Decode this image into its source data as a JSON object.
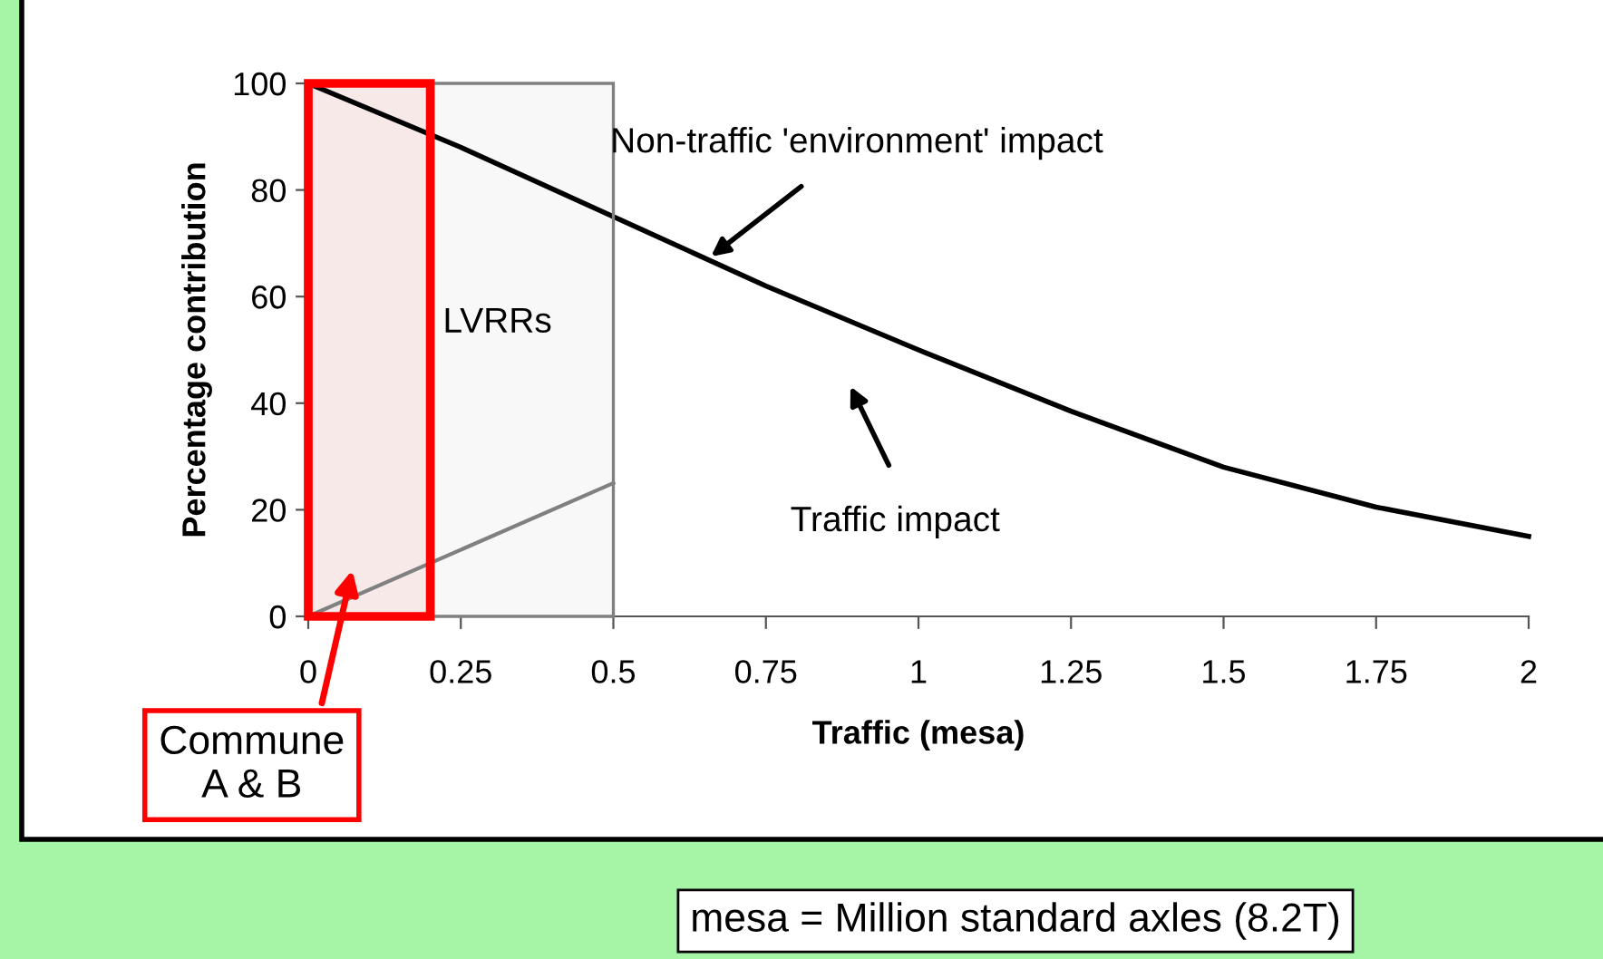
{
  "chart_data": {
    "type": "line",
    "xlabel": "Traffic (mesa)",
    "ylabel": "Percentage contribution",
    "series": [
      {
        "color": "#000000",
        "x": [
          0,
          0.25,
          0.5,
          0.75,
          1,
          1.25,
          1.5,
          1.75,
          2
        ],
        "values": [
          100,
          88,
          75,
          62,
          50,
          38.5,
          28,
          20.5,
          15
        ]
      },
      {
        "color": "#808080",
        "x": [
          0,
          0.5
        ],
        "values": [
          0,
          25
        ]
      }
    ],
    "xlim": [
      0,
      2
    ],
    "ylim": [
      0,
      100
    ],
    "xticks": [
      0,
      0.25,
      0.5,
      0.75,
      1,
      1.25,
      1.5,
      1.75,
      2
    ],
    "yticks": [
      0,
      20,
      40,
      60,
      80,
      100
    ],
    "bands": [
      {
        "axis": "x",
        "from": 0,
        "to": 0.5,
        "label": "LVRRs",
        "color": "#808080"
      },
      {
        "axis": "x",
        "from": 0,
        "to": 0.2,
        "label": "Commune\nA & B",
        "color": "#ff0000"
      }
    ],
    "annotations": [
      {
        "text": "Non-traffic 'environment' impact",
        "x": 0.66,
        "y": 67.5
      },
      "Traffic impact",
      "mesa = Million standard axles (8.2T)"
    ],
    "grid": false,
    "legend": false,
    "marker": "none",
    "line_style": "solid"
  }
}
